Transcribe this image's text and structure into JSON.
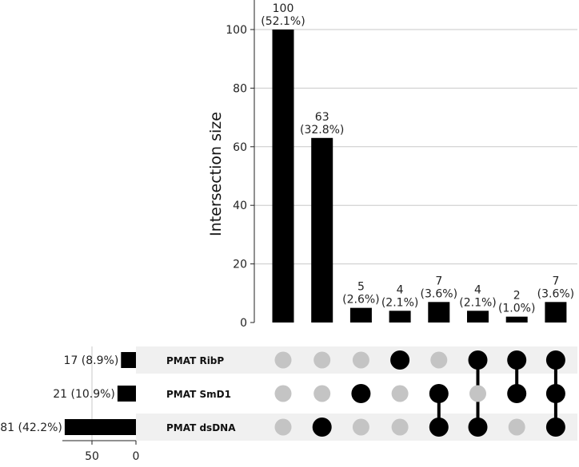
{
  "chart_data": {
    "type": "bar",
    "subtype": "upset",
    "ylabel": "Intersection size",
    "ylim": [
      0,
      105
    ],
    "yticks": [
      0,
      20,
      40,
      60,
      80,
      100
    ],
    "grid": true,
    "sets": [
      {
        "name": "PMAT RibP",
        "size": 17,
        "size_label": "17 (8.9%)"
      },
      {
        "name": "PMAT SmD1",
        "size": 21,
        "size_label": "21 (10.9%)"
      },
      {
        "name": "PMAT dsDNA",
        "size": 81,
        "size_label": "81 (42.2%)"
      }
    ],
    "set_size_ticks": [
      50,
      0
    ],
    "intersections": [
      {
        "members": [],
        "value": 100,
        "label_count": "100",
        "label_pct": "(52.1%)"
      },
      {
        "members": [
          "PMAT dsDNA"
        ],
        "value": 63,
        "label_count": "63",
        "label_pct": "(32.8%)"
      },
      {
        "members": [
          "PMAT SmD1"
        ],
        "value": 5,
        "label_count": "5",
        "label_pct": "(2.6%)"
      },
      {
        "members": [
          "PMAT RibP"
        ],
        "value": 4,
        "label_count": "4",
        "label_pct": "(2.1%)"
      },
      {
        "members": [
          "PMAT SmD1",
          "PMAT dsDNA"
        ],
        "value": 7,
        "label_count": "7",
        "label_pct": "(3.6%)"
      },
      {
        "members": [
          "PMAT RibP",
          "PMAT dsDNA"
        ],
        "value": 4,
        "label_count": "4",
        "label_pct": "(2.1%)"
      },
      {
        "members": [
          "PMAT RibP",
          "PMAT SmD1"
        ],
        "value": 2,
        "label_count": "2",
        "label_pct": "(1.0%)"
      },
      {
        "members": [
          "PMAT RibP",
          "PMAT SmD1",
          "PMAT dsDNA"
        ],
        "value": 7,
        "label_count": "7",
        "label_pct": "(3.6%)"
      }
    ],
    "colors": {
      "bar": "#000000",
      "dot_on": "#000000",
      "dot_off": "#c4c4c4",
      "grid": "#c8c8c8",
      "stripe": "#f0f0f0"
    }
  }
}
